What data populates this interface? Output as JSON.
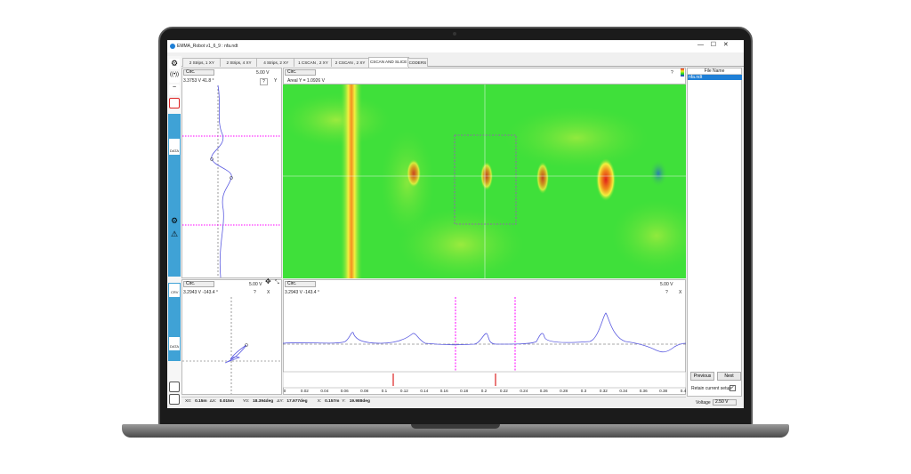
{
  "window": {
    "title": "EMMA_Robot v1_6_9 : nfa.ndt"
  },
  "tabs": [
    "2 Strips, 1 XY",
    "2 Strips, 4 XY",
    "4 Strips, 2 XY",
    "1 CSCAN , 2 XY",
    "2 CSCAN , 2 XY",
    "CSCAN AND SLICE",
    "CODERS"
  ],
  "sidebar": {
    "data_top": "DATA",
    "curve": "CRV",
    "data_bottom": "DATA"
  },
  "top_left_panel": {
    "mode": "Circ.",
    "range": "5.00 V",
    "readout": "3.3753 V  41.8 °",
    "help": "?",
    "axis": "Y"
  },
  "cscan_panel": {
    "mode": "Circ.",
    "readout": "Areal Y = 1.0926 V",
    "help": "?"
  },
  "file_panel": {
    "header": "File Name",
    "files": [
      "nfa.ndt"
    ],
    "previous": "Previous",
    "next": "Next",
    "retain": "Retain current setup",
    "voltage_label": "Voltage",
    "voltage": "2.50 V"
  },
  "bottom_left_panel": {
    "mode": "Circ.",
    "range": "5.00 V",
    "readout": "3.2943 V  -143.4 °",
    "help": "?",
    "axis": "X"
  },
  "slice_panel": {
    "mode": "Circ.",
    "range": "5.00 V",
    "readout": "3.2943 V  -143.4 °",
    "help": "?",
    "axis": "X",
    "axis_ticks": [
      "0",
      "0.02",
      "0.04",
      "0.06",
      "0.08",
      "0.1",
      "0.12",
      "0.14",
      "0.16",
      "0.18",
      "0.2",
      "0.22",
      "0.24",
      "0.26",
      "0.28",
      "0.3",
      "0.32",
      "0.34",
      "0.36",
      "0.38",
      "0.4"
    ]
  },
  "status_bar": [
    "X0:",
    "0.15m",
    "ΔX:",
    "0.015m",
    "Y0:",
    "18.394deg",
    "ΔY:",
    "17.977deg",
    "X:",
    "0.157m",
    "Y:",
    "19.988deg"
  ]
}
